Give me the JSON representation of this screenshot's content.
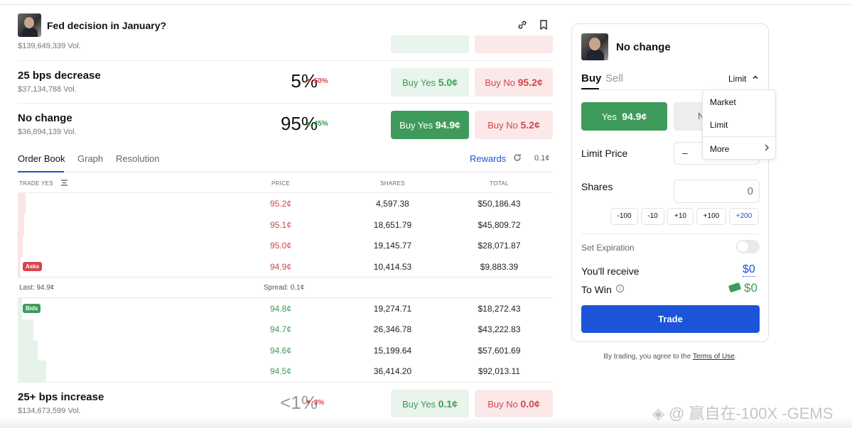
{
  "header": {
    "title": "Fed decision in January?"
  },
  "cut_row": {
    "volume": "$139,649,339 Vol."
  },
  "markets": [
    {
      "name": "25 bps decrease",
      "volume": "$37,134,788 Vol.",
      "pct": "5%",
      "change": "50%",
      "direction": "down",
      "buy_yes_label": "Buy Yes",
      "buy_yes_price": "5.0¢",
      "buy_no_label": "Buy No",
      "buy_no_price": "95.2¢"
    },
    {
      "name": "No change",
      "volume": "$36,894,139 Vol.",
      "pct": "95%",
      "change": "45%",
      "direction": "up",
      "buy_yes_label": "Buy Yes",
      "buy_yes_price": "94.9¢",
      "buy_no_label": "Buy No",
      "buy_no_price": "5.2¢"
    },
    {
      "name": "25+ bps increase",
      "volume": "$134,673,599 Vol.",
      "pct": "<1%",
      "change": "3%",
      "direction": "down",
      "buy_yes_label": "Buy Yes",
      "buy_yes_price": "0.1¢",
      "buy_no_label": "Buy No",
      "buy_no_price": "0.0¢"
    }
  ],
  "tabs": {
    "order_book": "Order Book",
    "graph": "Graph",
    "resolution": "Resolution",
    "rewards": "Rewards",
    "tick": "0.1¢"
  },
  "order_book": {
    "columns": {
      "trade": "TRADE YES",
      "price": "PRICE",
      "shares": "SHARES",
      "total": "TOTAL"
    },
    "asks_label": "Asks",
    "bids_label": "Bids",
    "last": "Last: 94.9¢",
    "spread": "Spread: 0.1¢",
    "asks": [
      {
        "price": "95.2¢",
        "shares": "4,597.38",
        "total": "$50,186.43"
      },
      {
        "price": "95.1¢",
        "shares": "18,651.79",
        "total": "$45,809.72"
      },
      {
        "price": "95.0¢",
        "shares": "19,145.77",
        "total": "$28,071.87"
      },
      {
        "price": "94.9¢",
        "shares": "10,414.53",
        "total": "$9,883.39"
      }
    ],
    "bids": [
      {
        "price": "94.8¢",
        "shares": "19,274.71",
        "total": "$18,272.43"
      },
      {
        "price": "94.7¢",
        "shares": "26,346.78",
        "total": "$43,222.83"
      },
      {
        "price": "94.6¢",
        "shares": "15,199.64",
        "total": "$57,601.69"
      },
      {
        "price": "94.5¢",
        "shares": "36,414.20",
        "total": "$92,013.11"
      }
    ]
  },
  "panel": {
    "title": "No change",
    "buy": "Buy",
    "sell": "Sell",
    "order_type": "Limit",
    "yes_label": "Yes",
    "yes_price": "94.9¢",
    "no_label": "N",
    "limit_price_label": "Limit Price",
    "minus": "–",
    "shares_label": "Shares",
    "shares_value": "0",
    "chips": [
      "-100",
      "-10",
      "+10",
      "+100",
      "+200"
    ],
    "set_expiration": "Set Expiration",
    "receive_label": "You'll receive",
    "receive_value": "$0",
    "to_win_label": "To Win",
    "to_win_value": "$0",
    "trade_button": "Trade",
    "terms_prefix": "By trading, you agree to the",
    "terms_link": "Terms of Use",
    "terms_suffix": "."
  },
  "dropdown": {
    "items": [
      "Market",
      "Limit",
      "More"
    ]
  },
  "watermark": "◈ @ 赢自在-100X -GEMS",
  "colors": {
    "green": "#3f9b5b",
    "red": "#d6454b",
    "blue": "#1b54d9"
  }
}
